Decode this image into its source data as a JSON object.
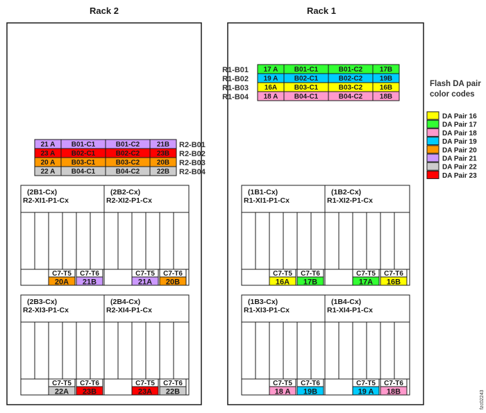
{
  "colors": {
    "16": "#ffff00",
    "17": "#33ff33",
    "18": "#ff99cc",
    "19": "#00ccff",
    "20": "#ff9900",
    "21": "#cc99ff",
    "22": "#cccccc",
    "23": "#ff0000"
  },
  "racks": [
    {
      "id": "rack2",
      "title": "Rack 2",
      "expansion": {
        "side": "right",
        "rows": [
          {
            "label": "R2-B01",
            "pair": "21",
            "cells": [
              "21 A",
              "B01-C1",
              "B01-C2",
              "21B"
            ]
          },
          {
            "label": "R2-B02",
            "pair": "23",
            "cells": [
              "23 A",
              "B02-C1",
              "B02-C2",
              "23B"
            ]
          },
          {
            "label": "R2-B03",
            "pair": "20",
            "cells": [
              "20 A",
              "B03-C1",
              "B03-C2",
              "20B"
            ]
          },
          {
            "label": "R2-B04",
            "pair": "22",
            "cells": [
              "22 A",
              "B04-C1",
              "B04-C2",
              "22B"
            ]
          }
        ]
      },
      "enclosures": [
        {
          "id": "(2B1-Cx)",
          "name": "R2-XI1-P1-Cx",
          "t5": "C7-T5",
          "t6": "C7-T6",
          "a": {
            "text": "20A",
            "pair": "20"
          },
          "b": {
            "text": "21B",
            "pair": "21"
          }
        },
        {
          "id": "(2B2-Cx)",
          "name": "R2-XI2-P1-Cx",
          "t5": "C7-T5",
          "t6": "C7-T6",
          "a": {
            "text": "21A",
            "pair": "21"
          },
          "b": {
            "text": "20B",
            "pair": "20"
          }
        },
        {
          "id": "(2B3-Cx)",
          "name": "R2-XI3-P1-Cx",
          "t5": "C7-T5",
          "t6": "C7-T6",
          "a": {
            "text": "22A",
            "pair": "22"
          },
          "b": {
            "text": "23B",
            "pair": "23"
          }
        },
        {
          "id": "(2B4-Cx)",
          "name": "R2-XI4-P1-Cx",
          "t5": "C7-T5",
          "t6": "C7-T6",
          "a": {
            "text": "23A",
            "pair": "23"
          },
          "b": {
            "text": "22B",
            "pair": "22"
          }
        }
      ]
    },
    {
      "id": "rack1",
      "title": "Rack 1",
      "expansion": {
        "side": "left",
        "rows": [
          {
            "label": "R1-B01",
            "pair": "17",
            "cells": [
              "17 A",
              "B01-C1",
              "B01-C2",
              "17B"
            ]
          },
          {
            "label": "R1-B02",
            "pair": "19",
            "cells": [
              "19 A",
              "B02-C1",
              "B02-C2",
              "19B"
            ]
          },
          {
            "label": "R1-B03",
            "pair": "16",
            "cells": [
              "16A",
              "B03-C1",
              "B03-C2",
              "16B"
            ]
          },
          {
            "label": "R1-B04",
            "pair": "18",
            "cells": [
              "18 A",
              "B04-C1",
              "B04-C2",
              "18B"
            ]
          }
        ]
      },
      "enclosures": [
        {
          "id": "(1B1-Cx)",
          "name": "R1-XI1-P1-Cx",
          "t5": "C7-T5",
          "t6": "C7-T6",
          "a": {
            "text": "16A",
            "pair": "16"
          },
          "b": {
            "text": "17B",
            "pair": "17"
          }
        },
        {
          "id": "(1B2-Cx)",
          "name": "R1-XI2-P1-Cx",
          "t5": "C7-T5",
          "t6": "C7-T6",
          "a": {
            "text": "17A",
            "pair": "17"
          },
          "b": {
            "text": "16B",
            "pair": "16"
          }
        },
        {
          "id": "(1B3-Cx)",
          "name": "R1-XI3-P1-Cx",
          "t5": "C7-T5",
          "t6": "C7-T6",
          "a": {
            "text": "18 A",
            "pair": "18"
          },
          "b": {
            "text": "19B",
            "pair": "19"
          }
        },
        {
          "id": "(1B4-Cx)",
          "name": "R1-XI4-P1-Cx",
          "t5": "C7-T5",
          "t6": "C7-T6",
          "a": {
            "text": "19 A",
            "pair": "19"
          },
          "b": {
            "text": "18B",
            "pair": "18"
          }
        }
      ]
    }
  ],
  "legend": {
    "title_line1": "Flash DA pair",
    "title_line2": "color codes",
    "items": [
      {
        "label": "DA Pair 16",
        "pair": "16"
      },
      {
        "label": "DA Pair 17",
        "pair": "17"
      },
      {
        "label": "DA Pair 18",
        "pair": "18"
      },
      {
        "label": "DA Pair 19",
        "pair": "19"
      },
      {
        "label": "DA Pair 20",
        "pair": "20"
      },
      {
        "label": "DA Pair 21",
        "pair": "21"
      },
      {
        "label": "DA Pair 22",
        "pair": "22"
      },
      {
        "label": "DA Pair 23",
        "pair": "23"
      }
    ]
  },
  "figure_id": "fzc02243"
}
